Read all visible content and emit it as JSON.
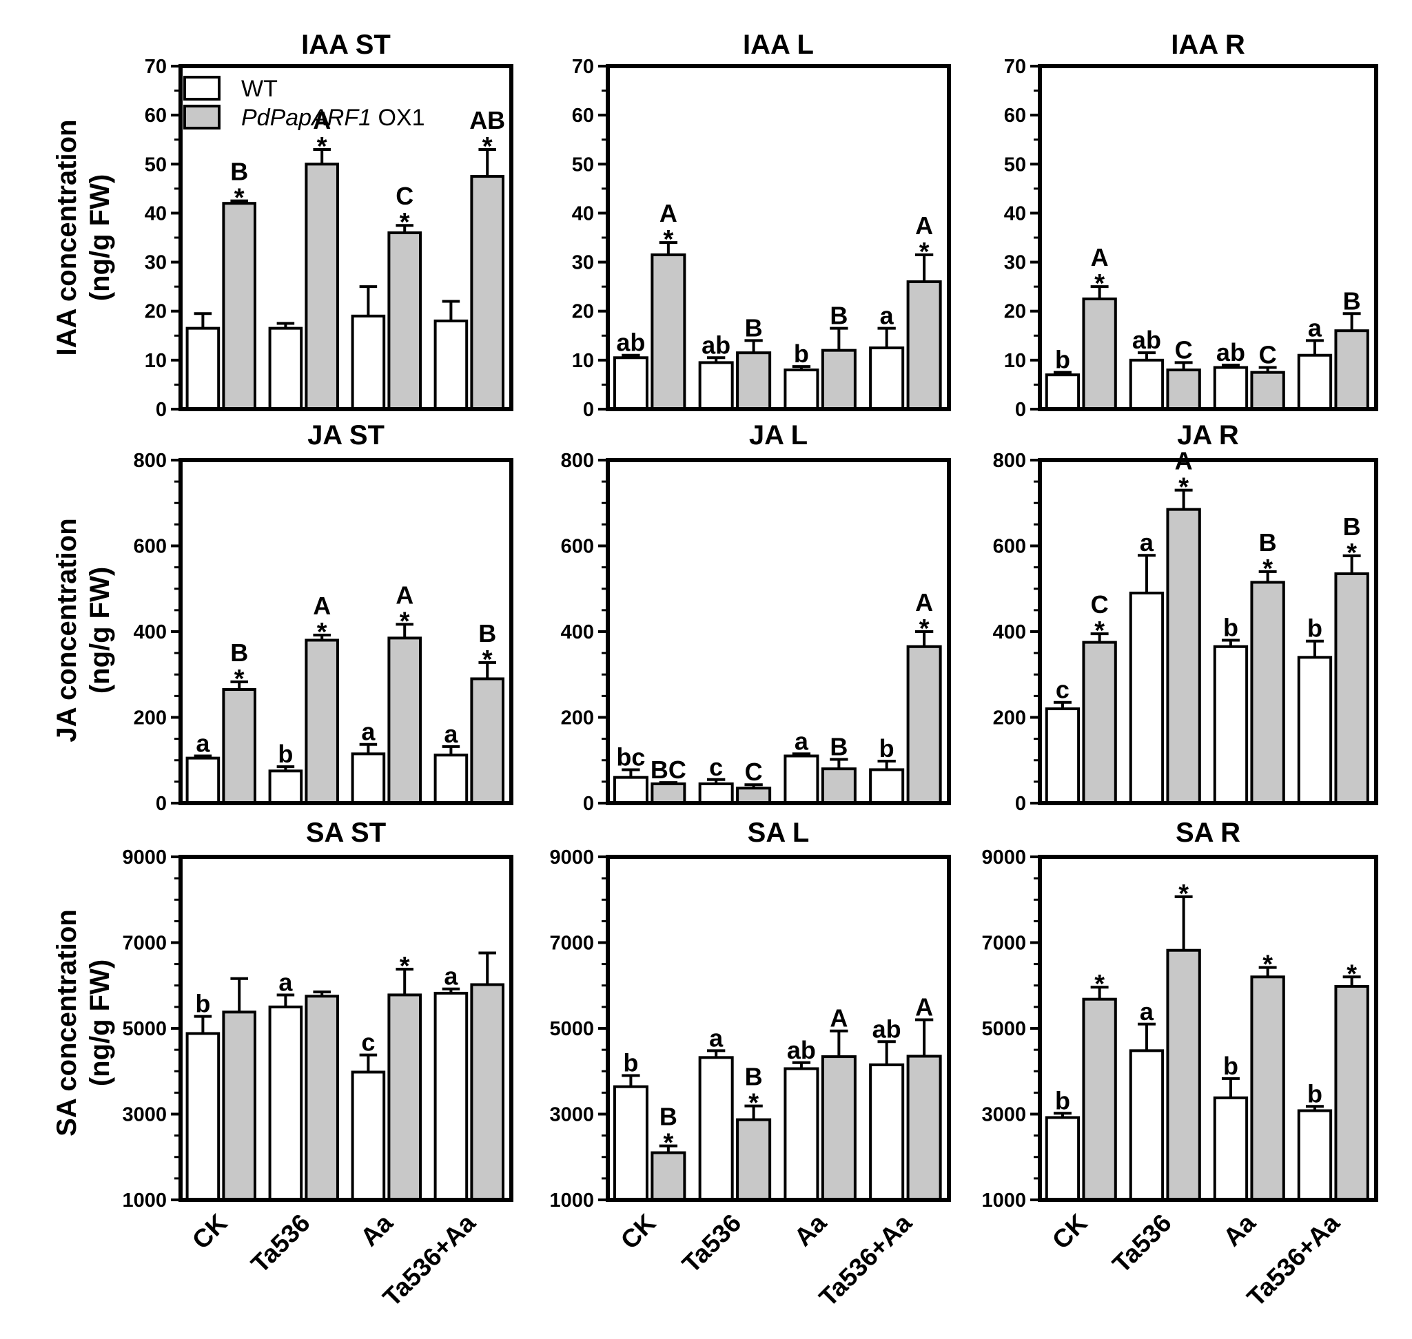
{
  "legend": {
    "items": [
      {
        "label": "WT",
        "color": "#ffffff"
      },
      {
        "label_italic": "PdPapARF1",
        "label_rest": " OX1",
        "color": "#c8c8c8"
      }
    ]
  },
  "row_ylabels": [
    {
      "line1": "IAA concentration",
      "line2": "(ng/g FW)"
    },
    {
      "line1": "JA concentration",
      "line2": "(ng/g FW)"
    },
    {
      "line1": "SA concentration",
      "line2": "(ng/g FW)"
    }
  ],
  "categories": [
    "CK",
    "Ta536",
    "Aa",
    "Ta536+Aa"
  ],
  "chart_data": [
    {
      "type": "bar",
      "title": "IAA ST",
      "categories": [
        "CK",
        "Ta536",
        "Aa",
        "Ta536+Aa"
      ],
      "ylim": [
        0,
        70
      ],
      "yticks": [
        0,
        10,
        20,
        30,
        40,
        50,
        60,
        70
      ],
      "series": [
        {
          "name": "WT",
          "color": "#ffffff",
          "values": [
            16.5,
            16.5,
            19,
            18
          ],
          "errors": [
            3,
            1,
            6,
            4
          ],
          "letters": [
            "",
            "",
            "",
            ""
          ],
          "stars": [
            false,
            false,
            false,
            false
          ]
        },
        {
          "name": "PdPapARF1 OX1",
          "color": "#c8c8c8",
          "values": [
            42,
            50,
            36,
            47.5
          ],
          "errors": [
            0.5,
            3,
            1.5,
            5.5
          ],
          "letters": [
            "B",
            "A",
            "C",
            "AB"
          ],
          "stars": [
            true,
            true,
            true,
            true
          ]
        }
      ]
    },
    {
      "type": "bar",
      "title": "IAA L",
      "categories": [
        "CK",
        "Ta536",
        "Aa",
        "Ta536+Aa"
      ],
      "ylim": [
        0,
        70
      ],
      "yticks": [
        0,
        10,
        20,
        30,
        40,
        50,
        60,
        70
      ],
      "series": [
        {
          "name": "WT",
          "color": "#ffffff",
          "values": [
            10.5,
            9.5,
            8,
            12.5
          ],
          "errors": [
            0.5,
            1,
            0.7,
            4
          ],
          "letters": [
            "ab",
            "ab",
            "b",
            "a"
          ],
          "stars": [
            false,
            false,
            false,
            false
          ]
        },
        {
          "name": "PdPapARF1 OX1",
          "color": "#c8c8c8",
          "values": [
            31.5,
            11.5,
            12,
            26
          ],
          "errors": [
            2.5,
            2.5,
            4.5,
            5.5
          ],
          "letters": [
            "A",
            "B",
            "B",
            "A"
          ],
          "stars": [
            true,
            false,
            false,
            true
          ]
        }
      ]
    },
    {
      "type": "bar",
      "title": "IAA R",
      "categories": [
        "CK",
        "Ta536",
        "Aa",
        "Ta536+Aa"
      ],
      "ylim": [
        0,
        70
      ],
      "yticks": [
        0,
        10,
        20,
        30,
        40,
        50,
        60,
        70
      ],
      "series": [
        {
          "name": "WT",
          "color": "#ffffff",
          "values": [
            7,
            10,
            8.5,
            11
          ],
          "errors": [
            0.5,
            1.5,
            0.5,
            3
          ],
          "letters": [
            "b",
            "ab",
            "ab",
            "a"
          ],
          "stars": [
            false,
            false,
            false,
            false
          ]
        },
        {
          "name": "PdPapARF1 OX1",
          "color": "#c8c8c8",
          "values": [
            22.5,
            8,
            7.5,
            16
          ],
          "errors": [
            2.5,
            1.5,
            1,
            3.5
          ],
          "letters": [
            "A",
            "C",
            "C",
            "B"
          ],
          "stars": [
            true,
            false,
            false,
            false
          ]
        }
      ]
    },
    {
      "type": "bar",
      "title": "JA ST",
      "categories": [
        "CK",
        "Ta536",
        "Aa",
        "Ta536+Aa"
      ],
      "ylim": [
        0,
        800
      ],
      "yticks": [
        0,
        200,
        400,
        600,
        800
      ],
      "series": [
        {
          "name": "WT",
          "color": "#ffffff",
          "values": [
            105,
            75,
            115,
            112
          ],
          "errors": [
            5,
            10,
            22,
            20
          ],
          "letters": [
            "a",
            "b",
            "a",
            "a"
          ],
          "stars": [
            false,
            false,
            false,
            false
          ]
        },
        {
          "name": "PdPapARF1 OX1",
          "color": "#c8c8c8",
          "values": [
            265,
            380,
            385,
            290
          ],
          "errors": [
            18,
            12,
            32,
            38
          ],
          "letters": [
            "B",
            "A",
            "A",
            "B"
          ],
          "stars": [
            true,
            true,
            true,
            true
          ]
        }
      ]
    },
    {
      "type": "bar",
      "title": "JA L",
      "categories": [
        "CK",
        "Ta536",
        "Aa",
        "Ta536+Aa"
      ],
      "ylim": [
        0,
        800
      ],
      "yticks": [
        0,
        200,
        400,
        600,
        800
      ],
      "series": [
        {
          "name": "WT",
          "color": "#ffffff",
          "values": [
            60,
            45,
            110,
            78
          ],
          "errors": [
            18,
            10,
            5,
            20
          ],
          "letters": [
            "bc",
            "c",
            "a",
            "b"
          ],
          "stars": [
            false,
            false,
            false,
            false
          ]
        },
        {
          "name": "PdPapARF1 OX1",
          "color": "#c8c8c8",
          "values": [
            45,
            35,
            80,
            365
          ],
          "errors": [
            3,
            8,
            22,
            35
          ],
          "letters": [
            "BC",
            "C",
            "B",
            "A"
          ],
          "stars": [
            false,
            false,
            false,
            true
          ]
        }
      ]
    },
    {
      "type": "bar",
      "title": "JA R",
      "categories": [
        "CK",
        "Ta536",
        "Aa",
        "Ta536+Aa"
      ],
      "ylim": [
        0,
        800
      ],
      "yticks": [
        0,
        200,
        400,
        600,
        800
      ],
      "series": [
        {
          "name": "WT",
          "color": "#ffffff",
          "values": [
            220,
            490,
            365,
            340
          ],
          "errors": [
            15,
            88,
            15,
            38
          ],
          "letters": [
            "c",
            "a",
            "b",
            "b"
          ],
          "stars": [
            false,
            false,
            false,
            false
          ]
        },
        {
          "name": "PdPapARF1 OX1",
          "color": "#c8c8c8",
          "values": [
            375,
            685,
            515,
            535
          ],
          "errors": [
            20,
            45,
            25,
            42
          ],
          "letters": [
            "C",
            "A",
            "B",
            "B"
          ],
          "stars": [
            true,
            true,
            true,
            true
          ]
        }
      ]
    },
    {
      "type": "bar",
      "title": "SA ST",
      "categories": [
        "CK",
        "Ta536",
        "Aa",
        "Ta536+Aa"
      ],
      "ylim": [
        1000,
        9000
      ],
      "yticks": [
        1000,
        3000,
        5000,
        7000,
        9000
      ],
      "minor_step": 500,
      "series": [
        {
          "name": "WT",
          "color": "#ffffff",
          "values": [
            4880,
            5500,
            3980,
            5820
          ],
          "errors": [
            400,
            280,
            400,
            100
          ],
          "letters": [
            "b",
            "a",
            "c",
            "a"
          ],
          "stars": [
            false,
            false,
            false,
            false
          ]
        },
        {
          "name": "PdPapARF1 OX1",
          "color": "#c8c8c8",
          "values": [
            5380,
            5750,
            5780,
            6020
          ],
          "errors": [
            780,
            100,
            600,
            740
          ],
          "letters": [
            "",
            "",
            "",
            ""
          ],
          "stars": [
            false,
            false,
            true,
            false
          ]
        }
      ]
    },
    {
      "type": "bar",
      "title": "SA L",
      "categories": [
        "CK",
        "Ta536",
        "Aa",
        "Ta536+Aa"
      ],
      "ylim": [
        1000,
        9000
      ],
      "yticks": [
        1000,
        3000,
        5000,
        7000,
        9000
      ],
      "minor_step": 500,
      "series": [
        {
          "name": "WT",
          "color": "#ffffff",
          "values": [
            3640,
            4320,
            4060,
            4150
          ],
          "errors": [
            260,
            160,
            140,
            540
          ],
          "letters": [
            "b",
            "a",
            "ab",
            "ab"
          ],
          "stars": [
            false,
            false,
            false,
            false
          ]
        },
        {
          "name": "PdPapARF1 OX1",
          "color": "#c8c8c8",
          "values": [
            2100,
            2870,
            4340,
            4350
          ],
          "errors": [
            160,
            320,
            600,
            850
          ],
          "letters": [
            "B",
            "B",
            "A",
            "A"
          ],
          "stars": [
            true,
            true,
            false,
            false
          ]
        }
      ]
    },
    {
      "type": "bar",
      "title": "SA R",
      "categories": [
        "CK",
        "Ta536",
        "Aa",
        "Ta536+Aa"
      ],
      "ylim": [
        1000,
        9000
      ],
      "yticks": [
        1000,
        3000,
        5000,
        7000,
        9000
      ],
      "minor_step": 500,
      "series": [
        {
          "name": "WT",
          "color": "#ffffff",
          "values": [
            2920,
            4480,
            3380,
            3080
          ],
          "errors": [
            100,
            620,
            450,
            100
          ],
          "letters": [
            "b",
            "a",
            "b",
            "b"
          ],
          "stars": [
            false,
            false,
            false,
            false
          ]
        },
        {
          "name": "PdPapARF1 OX1",
          "color": "#c8c8c8",
          "values": [
            5680,
            6820,
            6200,
            5980
          ],
          "errors": [
            280,
            1250,
            220,
            220
          ],
          "letters": [
            "",
            "",
            "",
            ""
          ],
          "stars": [
            true,
            true,
            true,
            true
          ]
        }
      ]
    }
  ]
}
